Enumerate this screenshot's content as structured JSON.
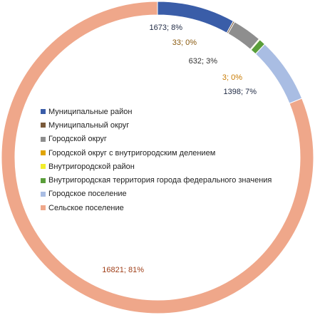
{
  "chart_data": {
    "type": "pie",
    "variant": "donut",
    "title": "",
    "legend_position": "left-inside",
    "slices": [
      {
        "name": "Муниципальные район",
        "value": 1673,
        "percent": "8%",
        "label": "1673; 8%",
        "color": "#3A5DA8",
        "label_color": "#1F2A44"
      },
      {
        "name": "Муниципальный округ",
        "value": 33,
        "percent": "0%",
        "label": "33; 0%",
        "color": "#7A5A3A",
        "label_color": "#8A5A10"
      },
      {
        "name": "Городской округ",
        "value": 632,
        "percent": "3%",
        "label": "632; 3%",
        "color": "#8E8E8E",
        "label_color": "#333333"
      },
      {
        "name": "Городской округ с внутригородским делением",
        "value": 3,
        "percent": "0%",
        "label": "3; 0%",
        "color": "#E0A400",
        "label_color": "#C87A00"
      },
      {
        "name": "Внутригородской район",
        "value": 19,
        "percent": "0%",
        "label": "",
        "color": "#F2EE2A",
        "label_color": "#F2EE2A"
      },
      {
        "name": "Внутригородская территория  города федерального значения",
        "value": 140,
        "percent": "1%",
        "label": "",
        "color": "#5A9E3A",
        "label_color": "#5A9E3A"
      },
      {
        "name": "Городское поселение",
        "value": 1398,
        "percent": "7%",
        "label": "1398; 7%",
        "color": "#A9BDE3",
        "label_color": "#1F2A44"
      },
      {
        "name": "Сельское поселение",
        "value": 16821,
        "percent": "81%",
        "label": "16821; 81%",
        "color": "#EFA78A",
        "label_color": "#A0401A"
      }
    ]
  }
}
